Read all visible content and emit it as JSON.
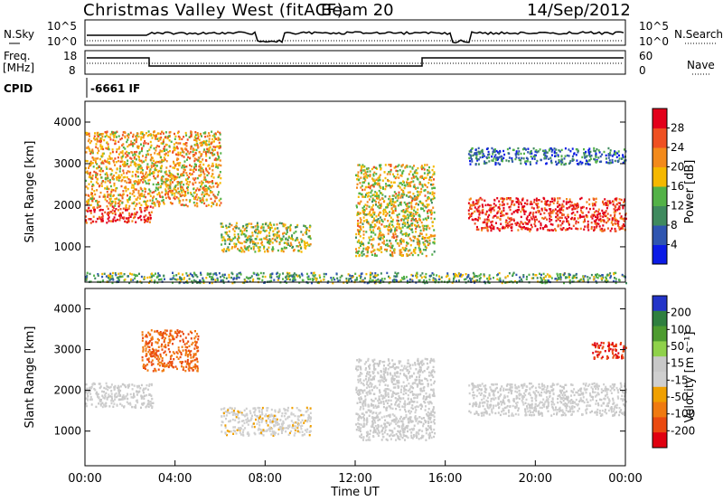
{
  "header": {
    "title": "Christmas Valley West (fitACF)",
    "beam": "Beam 20",
    "date": "14/Sep/2012"
  },
  "noise_panel": {
    "left_label": "N.Sky",
    "left_ticks": [
      "10^5",
      "10^0"
    ],
    "right_ticks": [
      "10^5",
      "10^0"
    ],
    "right_label": "N.Search"
  },
  "freq_panel": {
    "left_label": [
      "Freq.",
      "[MHz]"
    ],
    "left_ticks": [
      "18",
      "8"
    ],
    "right_ticks": [
      "60",
      "0"
    ],
    "right_label": "Nave"
  },
  "cpid": {
    "label": "CPID",
    "value": "-6661 IF"
  },
  "colors": {
    "power_scale": [
      "#0b1be6",
      "#2f55b0",
      "#3f8a5e",
      "#53b247",
      "#f5b800",
      "#f38a1b",
      "#ef5022",
      "#e3001b"
    ],
    "velocity_scale": [
      "#2334c8",
      "#2f7f3f",
      "#4d9b2f",
      "#8fd14a",
      "#c8c8c8",
      "#cfcfcf",
      "#f0a000",
      "#f07a10",
      "#ea4a10",
      "#e00010"
    ]
  },
  "chart_data": [
    {
      "type": "heatmap",
      "panel": "power",
      "ylabel": "Slant Range [km]",
      "yticks": [
        "1000",
        "2000",
        "3000",
        "4000"
      ],
      "ylim": [
        150,
        4500
      ],
      "xlim": [
        0,
        24
      ],
      "colorbar_label": "Power [dB]",
      "colorbar_ticks": [
        "4",
        "8",
        "12",
        "16",
        "20",
        "24",
        "28"
      ],
      "colorbar_range": [
        0,
        32
      ],
      "features": [
        {
          "t0": 0.0,
          "t1": 3.0,
          "range0": 1600,
          "range1": 2000,
          "power": 28
        },
        {
          "t0": 0.0,
          "t1": 6.0,
          "range0": 2000,
          "range1": 3800,
          "power": 20
        },
        {
          "t0": 6.0,
          "t1": 10.0,
          "range0": 900,
          "range1": 1600,
          "power": 16
        },
        {
          "t0": 12.0,
          "t1": 15.5,
          "range0": 800,
          "range1": 3000,
          "power": 18
        },
        {
          "t0": 17.0,
          "t1": 24.0,
          "range0": 1400,
          "range1": 2200,
          "power": 28
        },
        {
          "t0": 17.0,
          "t1": 24.0,
          "range0": 3000,
          "range1": 3400,
          "power": 8
        },
        {
          "t0": 0.0,
          "t1": 24.0,
          "range0": 150,
          "range1": 400,
          "power": 12
        }
      ]
    },
    {
      "type": "heatmap",
      "panel": "velocity",
      "ylabel": "Slant Range [km]",
      "yticks": [
        "1000",
        "2000",
        "3000",
        "4000"
      ],
      "ylim": [
        150,
        4500
      ],
      "xlim": [
        0,
        24
      ],
      "xlabel": "Time UT",
      "xticks": [
        "00:00",
        "04:00",
        "08:00",
        "12:00",
        "16:00",
        "20:00",
        "00:00"
      ],
      "colorbar_label": "Velocity [m s⁻¹]",
      "colorbar_ticks": [
        "200",
        "100",
        "50",
        "15",
        "-15",
        "-50",
        "-100",
        "-200"
      ],
      "colorbar_range": [
        -250,
        250
      ],
      "features": [
        {
          "t0": 0.0,
          "t1": 3.0,
          "range0": 1600,
          "range1": 2200,
          "velocity": 0
        },
        {
          "t0": 2.5,
          "t1": 5.0,
          "range0": 2500,
          "range1": 3500,
          "velocity": -150
        },
        {
          "t0": 6.0,
          "t1": 10.0,
          "range0": 900,
          "range1": 1600,
          "velocity": -30
        },
        {
          "t0": 12.0,
          "t1": 15.5,
          "range0": 800,
          "range1": 2800,
          "velocity": 10
        },
        {
          "t0": 17.0,
          "t1": 24.0,
          "range0": 1400,
          "range1": 2200,
          "velocity": 0
        },
        {
          "t0": 22.5,
          "t1": 24.0,
          "range0": 2800,
          "range1": 3200,
          "velocity": -200
        }
      ]
    }
  ]
}
